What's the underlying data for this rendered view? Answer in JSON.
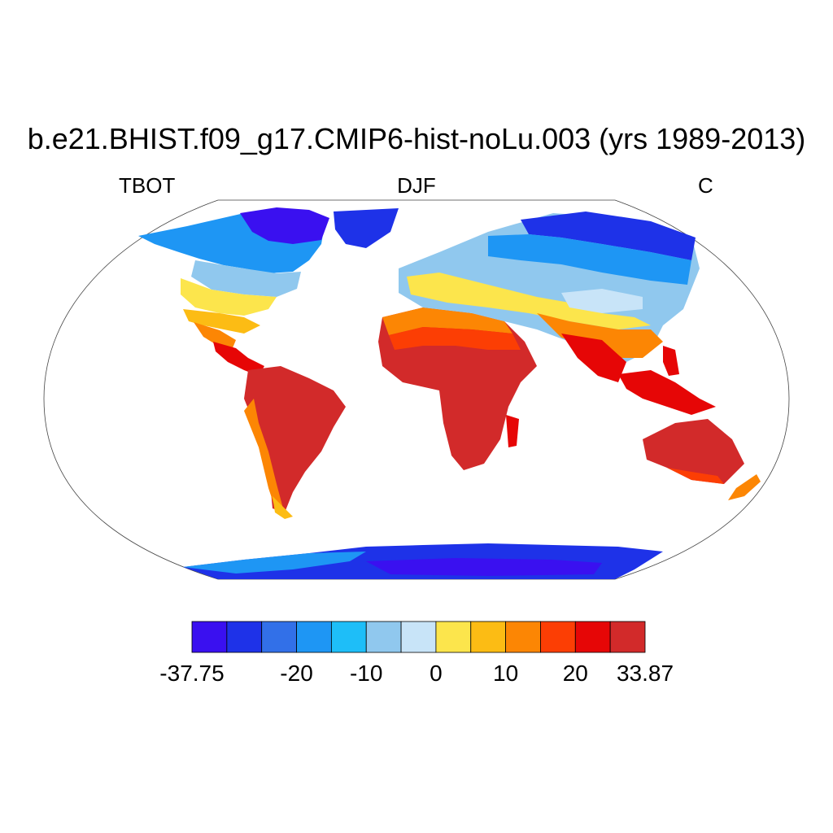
{
  "title": "b.e21.BHIST.f09_g17.CMIP6-hist-noLu.003 (yrs 1989-2013)",
  "left_string": "TBOT",
  "center_string": "DJF",
  "right_string": "C",
  "colorbar": {
    "colors": [
      "#3a10f0",
      "#1e32e8",
      "#3270e8",
      "#1e96f4",
      "#1ebef8",
      "#90c8ee",
      "#c8e4f8",
      "#fce54c",
      "#fcbc14",
      "#fc8604",
      "#fc3e04",
      "#e60606",
      "#d22a2a"
    ],
    "labels": [
      "-37.75",
      "-20",
      "-10",
      "0",
      "10",
      "20",
      "33.87"
    ],
    "min": -37.75,
    "max": 33.87
  },
  "chart_data": {
    "type": "heatmap",
    "variable": "TBOT",
    "season": "DJF",
    "units": "C",
    "projection": "robinson",
    "value_range": [
      -37.75,
      33.87
    ],
    "contour_intervals": [
      -30,
      -25,
      -20,
      -15,
      -10,
      -5,
      0,
      5,
      10,
      15,
      20,
      25
    ]
  }
}
